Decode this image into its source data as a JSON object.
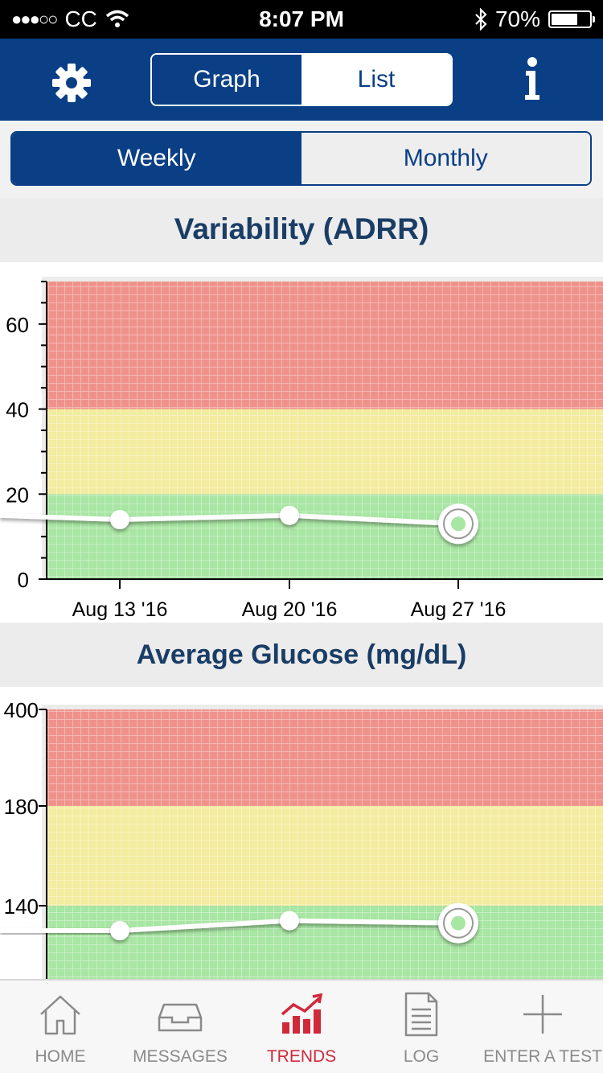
{
  "status_bar": {
    "carrier": "CC",
    "time": "8:07 PM",
    "battery": "70%",
    "battery_level": 0.7
  },
  "nav": {
    "view_tabs": [
      {
        "label": "Graph",
        "selected": true
      },
      {
        "label": "List",
        "selected": false
      }
    ],
    "icons": [
      "gear-icon",
      "info-icon"
    ]
  },
  "period": {
    "tabs": [
      {
        "label": "Weekly",
        "selected": true
      },
      {
        "label": "Monthly",
        "selected": false
      }
    ]
  },
  "charts": {
    "adrr_title": "Variability (ADRR)",
    "glucose_title": "Average Glucose (mg/dL)"
  },
  "chart_data": [
    {
      "type": "line",
      "title": "Variability (ADRR)",
      "categories": [
        "Aug 13 '16",
        "Aug 20 '16",
        "Aug 27 '16"
      ],
      "values": [
        14,
        15,
        13
      ],
      "leading_value": 15,
      "ylim": [
        0,
        70
      ],
      "yticks": [
        0,
        20,
        40,
        60
      ],
      "bands": [
        {
          "from": 0,
          "to": 20,
          "color": "#a8e6a3"
        },
        {
          "from": 20,
          "to": 40,
          "color": "#f3eba0"
        },
        {
          "from": 40,
          "to": 70,
          "color": "#f0928c"
        }
      ],
      "highlight_index": 2
    },
    {
      "type": "line",
      "title": "Average Glucose (mg/dL)",
      "categories": [
        "Aug 13 '16",
        "Aug 20 '16",
        "Aug 27 '16"
      ],
      "values": [
        130,
        134,
        133
      ],
      "leading_value": 130,
      "yticks": [
        140,
        180,
        400
      ],
      "bands": [
        {
          "label": "green",
          "below": 140,
          "color": "#a8e6a3"
        },
        {
          "label": "yellow",
          "from": 140,
          "to": 180,
          "color": "#f3eba0"
        },
        {
          "label": "red",
          "above": 180,
          "color": "#f0928c"
        }
      ],
      "highlight_index": 2
    }
  ],
  "tab_bar": {
    "items": [
      {
        "label": "HOME",
        "icon": "home-icon",
        "active": false
      },
      {
        "label": "MESSAGES",
        "icon": "inbox-icon",
        "active": false
      },
      {
        "label": "TRENDS",
        "icon": "trends-icon",
        "active": true
      },
      {
        "label": "LOG",
        "icon": "log-icon",
        "active": false
      },
      {
        "label": "ENTER A TEST",
        "icon": "plus-icon",
        "active": false
      }
    ]
  }
}
